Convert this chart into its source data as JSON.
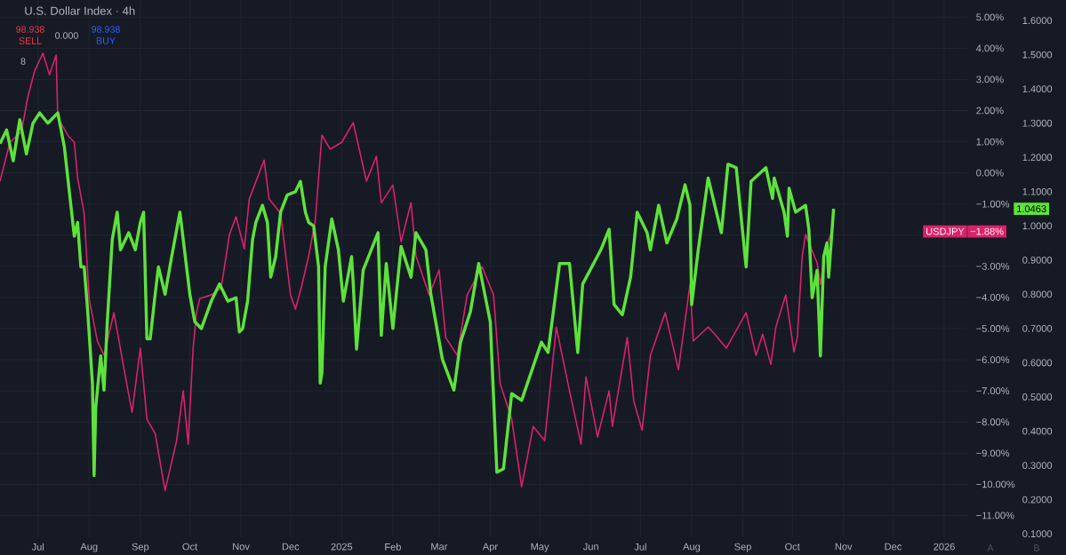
{
  "chart_data": {
    "type": "line",
    "title": "U.S. Dollar Index · 4h",
    "xlim": [
      "2024-06-08",
      "2026-01-15"
    ],
    "xticks": [
      {
        "value": "2024-07-01",
        "label": "Jul"
      },
      {
        "value": "2024-08-01",
        "label": "Aug"
      },
      {
        "value": "2024-09-01",
        "label": "Sep"
      },
      {
        "value": "2024-10-01",
        "label": "Oct"
      },
      {
        "value": "2024-11-01",
        "label": "Nov"
      },
      {
        "value": "2024-12-01",
        "label": "Dec"
      },
      {
        "value": "2025-01-01",
        "label": "2025"
      },
      {
        "value": "2025-02-01",
        "label": "Feb"
      },
      {
        "value": "2025-03-01",
        "label": "Mar"
      },
      {
        "value": "2025-04-01",
        "label": "Apr"
      },
      {
        "value": "2025-05-01",
        "label": "May"
      },
      {
        "value": "2025-06-01",
        "label": "Jun"
      },
      {
        "value": "2025-07-01",
        "label": "Jul"
      },
      {
        "value": "2025-08-01",
        "label": "Aug"
      },
      {
        "value": "2025-09-01",
        "label": "Sep"
      },
      {
        "value": "2025-10-01",
        "label": "Oct"
      },
      {
        "value": "2025-11-01",
        "label": "Nov"
      },
      {
        "value": "2025-12-01",
        "label": "Dec"
      },
      {
        "value": "2026-01-01",
        "label": "2026"
      }
    ],
    "ylim": [
      -11.7,
      5.55
    ],
    "yticks": [
      {
        "value": 5,
        "label": "5.00%"
      },
      {
        "value": 4,
        "label": "4.00%"
      },
      {
        "value": 3,
        "label": "3.00%"
      },
      {
        "value": 2,
        "label": "2.00%"
      },
      {
        "value": 1,
        "label": "1.00%"
      },
      {
        "value": 0,
        "label": "0.00%"
      },
      {
        "value": -1,
        "label": "−1.00%"
      },
      {
        "value": -2,
        "label": null
      },
      {
        "value": -3,
        "label": "−3.00%"
      },
      {
        "value": -4,
        "label": "−4.00%"
      },
      {
        "value": -5,
        "label": "−5.00%"
      },
      {
        "value": -6,
        "label": "−6.00%"
      },
      {
        "value": -7,
        "label": "−7.00%"
      },
      {
        "value": -8,
        "label": "−8.00%"
      },
      {
        "value": -9,
        "label": "−9.00%"
      },
      {
        "value": -10,
        "label": "−10.00%"
      },
      {
        "value": -11,
        "label": "−11.00%"
      }
    ],
    "y2lim": [
      0.09,
      1.66
    ],
    "y2ticks": [
      {
        "value": 1.6,
        "label": "1.6000"
      },
      {
        "value": 1.5,
        "label": "1.5000"
      },
      {
        "value": 1.4,
        "label": "1.4000"
      },
      {
        "value": 1.3,
        "label": "1.3000"
      },
      {
        "value": 1.2,
        "label": "1.2000"
      },
      {
        "value": 1.1,
        "label": "1.1000"
      },
      {
        "value": 1.0,
        "label": "1.0000"
      },
      {
        "value": 0.9,
        "label": "0.9000"
      },
      {
        "value": 0.8,
        "label": "0.8000"
      },
      {
        "value": 0.7,
        "label": "0.7000"
      },
      {
        "value": 0.6,
        "label": "0.6000"
      },
      {
        "value": 0.5,
        "label": "0.5000"
      },
      {
        "value": 0.4,
        "label": "0.4000"
      },
      {
        "value": 0.3,
        "label": "0.3000"
      },
      {
        "value": 0.2,
        "label": "0.2000"
      },
      {
        "value": 0.1,
        "label": "0.1000"
      }
    ],
    "grid": true,
    "annotations": [
      "98.938",
      "SELL",
      "0.000",
      "98.938",
      "BUY",
      "8",
      "A",
      "B",
      "−1.88%",
      "1.0463"
    ],
    "series": [
      {
        "name": "USDJPY",
        "color": "#d8226a",
        "x": [
          "2024-06-08",
          "2024-06-14",
          "2024-06-21",
          "2024-06-25",
          "2024-06-29",
          "2024-07-04",
          "2024-07-08",
          "2024-07-12",
          "2024-07-13",
          "2024-07-19",
          "2024-07-23",
          "2024-07-25",
          "2024-07-29",
          "2024-08-01",
          "2024-08-06",
          "2024-08-10",
          "2024-08-16",
          "2024-08-23",
          "2024-08-27",
          "2024-09-01",
          "2024-09-05",
          "2024-09-10",
          "2024-09-16",
          "2024-09-23",
          "2024-09-27",
          "2024-09-30",
          "2024-10-03",
          "2024-10-05",
          "2024-10-07",
          "2024-10-14",
          "2024-10-20",
          "2024-10-25",
          "2024-10-29",
          "2024-11-03",
          "2024-11-06",
          "2024-11-15",
          "2024-11-18",
          "2024-11-25",
          "2024-12-01",
          "2024-12-04",
          "2024-12-08",
          "2024-12-12",
          "2024-12-16",
          "2024-12-20",
          "2024-12-25",
          "2025-01-01",
          "2025-01-08",
          "2025-01-16",
          "2025-01-22",
          "2025-01-25",
          "2025-02-01",
          "2025-02-06",
          "2025-02-12",
          "2025-02-15",
          "2025-02-23",
          "2025-03-01",
          "2025-03-05",
          "2025-03-12",
          "2025-03-18",
          "2025-03-27",
          "2025-04-03",
          "2025-04-07",
          "2025-04-14",
          "2025-04-20",
          "2025-04-27",
          "2025-05-04",
          "2025-05-11",
          "2025-05-19",
          "2025-05-26",
          "2025-05-29",
          "2025-06-05",
          "2025-06-12",
          "2025-06-14",
          "2025-06-23",
          "2025-06-27",
          "2025-07-02",
          "2025-07-07",
          "2025-07-16",
          "2025-07-24",
          "2025-07-31",
          "2025-08-02",
          "2025-08-11",
          "2025-08-15",
          "2025-08-22",
          "2025-09-03",
          "2025-09-09",
          "2025-09-13",
          "2025-09-18",
          "2025-09-21",
          "2025-09-27",
          "2025-10-02",
          "2025-10-04",
          "2025-10-07",
          "2025-10-09",
          "2025-10-16",
          "2025-10-18",
          "2025-10-21",
          "2025-10-25"
        ],
        "values": [
          -0.27,
          0.98,
          1.33,
          2.47,
          3.27,
          3.84,
          3.15,
          3.78,
          1.78,
          1.21,
          0.98,
          -0.16,
          -1.3,
          -4.04,
          -5.4,
          -5.86,
          -4.49,
          -6.55,
          -7.69,
          -5.63,
          -7.91,
          -8.37,
          -10.2,
          -8.6,
          -7.0,
          -8.71,
          -5.63,
          -4.49,
          -4.04,
          -3.92,
          -3.69,
          -1.98,
          -1.41,
          -2.44,
          -0.84,
          0.41,
          -0.84,
          -1.3,
          -3.92,
          -4.38,
          -3.58,
          -2.67,
          -1.53,
          1.21,
          0.76,
          0.98,
          1.61,
          -0.27,
          0.53,
          -0.96,
          -0.39,
          -2.21,
          -0.96,
          -2.67,
          -3.92,
          -3.12,
          -5.29,
          -5.86,
          -3.92,
          -3.01,
          -3.92,
          -6.77,
          -7.91,
          -10.08,
          -8.14,
          -8.6,
          -4.95,
          -7.0,
          -8.71,
          -6.55,
          -8.48,
          -7.0,
          -8.14,
          -5.29,
          -7.34,
          -8.26,
          -5.86,
          -4.49,
          -6.32,
          -3.58,
          -5.4,
          -4.95,
          -5.18,
          -5.63,
          -4.49,
          -5.86,
          -5.18,
          -6.15,
          -4.95,
          -3.92,
          -5.75,
          -5.29,
          -2.67,
          -1.98,
          -2.89,
          -3.58,
          -2.44,
          -1.88
        ]
      },
      {
        "color": "#5ee23b",
        "axis": "y2",
        "x": [
          "2024-06-08",
          "2024-06-12",
          "2024-06-16",
          "2024-06-20",
          "2024-06-24",
          "2024-06-28",
          "2024-07-02",
          "2024-07-07",
          "2024-07-13",
          "2024-07-17",
          "2024-07-20",
          "2024-07-23",
          "2024-07-25",
          "2024-07-27",
          "2024-07-29",
          "2024-07-31",
          "2024-08-03",
          "2024-08-04",
          "2024-08-05",
          "2024-08-08",
          "2024-08-10",
          "2024-08-12",
          "2024-08-15",
          "2024-08-18",
          "2024-08-20",
          "2024-08-25",
          "2024-08-29",
          "2024-09-01",
          "2024-09-03",
          "2024-09-05",
          "2024-09-07",
          "2024-09-10",
          "2024-09-12",
          "2024-09-16",
          "2024-09-20",
          "2024-09-25",
          "2024-09-29",
          "2024-10-01",
          "2024-10-04",
          "2024-10-08",
          "2024-10-14",
          "2024-10-19",
          "2024-10-24",
          "2024-10-29",
          "2024-10-31",
          "2024-11-02",
          "2024-11-05",
          "2024-11-08",
          "2024-11-10",
          "2024-11-14",
          "2024-11-17",
          "2024-11-19",
          "2024-11-22",
          "2024-11-25",
          "2024-11-29",
          "2024-12-04",
          "2024-12-07",
          "2024-12-10",
          "2024-12-12",
          "2024-12-15",
          "2024-12-18",
          "2024-12-19",
          "2024-12-20",
          "2024-12-22",
          "2024-12-26",
          "2024-12-30",
          "2025-01-02",
          "2025-01-07",
          "2025-01-08",
          "2025-01-10",
          "2025-01-14",
          "2025-01-23",
          "2025-01-25",
          "2025-01-28",
          "2025-02-01",
          "2025-02-06",
          "2025-02-12",
          "2025-02-15",
          "2025-02-21",
          "2025-02-24",
          "2025-03-03",
          "2025-03-10",
          "2025-03-14",
          "2025-03-20",
          "2025-03-25",
          "2025-04-01",
          "2025-04-05",
          "2025-04-09",
          "2025-04-14",
          "2025-04-20",
          "2025-05-02",
          "2025-05-06",
          "2025-05-13",
          "2025-05-19",
          "2025-05-24",
          "2025-05-27",
          "2025-06-07",
          "2025-06-12",
          "2025-06-15",
          "2025-06-20",
          "2025-06-25",
          "2025-06-29",
          "2025-07-05",
          "2025-07-07",
          "2025-07-12",
          "2025-07-17",
          "2025-07-23",
          "2025-07-28",
          "2025-07-31",
          "2025-08-01",
          "2025-08-05",
          "2025-08-11",
          "2025-08-19",
          "2025-08-23",
          "2025-08-28",
          "2025-09-03",
          "2025-09-06",
          "2025-09-15",
          "2025-09-19",
          "2025-09-20",
          "2025-09-26",
          "2025-09-28",
          "2025-09-29",
          "2025-10-03",
          "2025-10-09",
          "2025-10-11",
          "2025-10-13",
          "2025-10-16",
          "2025-10-18",
          "2025-10-20",
          "2025-10-22",
          "2025-10-23",
          "2025-10-26"
        ],
        "values": [
          1.24,
          1.28,
          1.19,
          1.31,
          1.21,
          1.3,
          1.33,
          1.3,
          1.33,
          1.23,
          1.1,
          0.97,
          1.01,
          0.88,
          0.88,
          0.76,
          0.54,
          0.27,
          0.47,
          0.62,
          0.52,
          0.72,
          0.96,
          1.04,
          0.93,
          0.98,
          0.93,
          1.01,
          1.04,
          0.67,
          0.67,
          0.8,
          0.88,
          0.8,
          0.91,
          1.04,
          0.88,
          0.8,
          0.72,
          0.7,
          0.78,
          0.83,
          0.78,
          0.79,
          0.69,
          0.7,
          0.78,
          0.96,
          1.01,
          1.06,
          1.01,
          0.85,
          0.91,
          1.04,
          1.09,
          1.1,
          1.13,
          1.04,
          1.01,
          1.0,
          0.88,
          0.54,
          0.57,
          0.88,
          1.02,
          0.93,
          0.78,
          0.91,
          0.83,
          0.64,
          0.87,
          0.98,
          0.68,
          0.89,
          0.7,
          0.94,
          0.85,
          0.98,
          0.93,
          0.8,
          0.61,
          0.52,
          0.66,
          0.75,
          0.89,
          0.72,
          0.28,
          0.29,
          0.51,
          0.49,
          0.66,
          0.63,
          0.89,
          0.89,
          0.63,
          0.83,
          0.93,
          0.99,
          0.77,
          0.74,
          0.85,
          1.04,
          0.98,
          0.93,
          1.06,
          0.95,
          1.02,
          1.12,
          1.06,
          0.77,
          0.93,
          1.14,
          0.98,
          1.18,
          1.17,
          0.88,
          1.13,
          1.17,
          1.08,
          1.14,
          1.04,
          0.97,
          1.11,
          1.04,
          1.06,
          0.99,
          0.79,
          0.87,
          0.62,
          0.91,
          0.95,
          0.85,
          1.05
        ]
      }
    ]
  }
}
